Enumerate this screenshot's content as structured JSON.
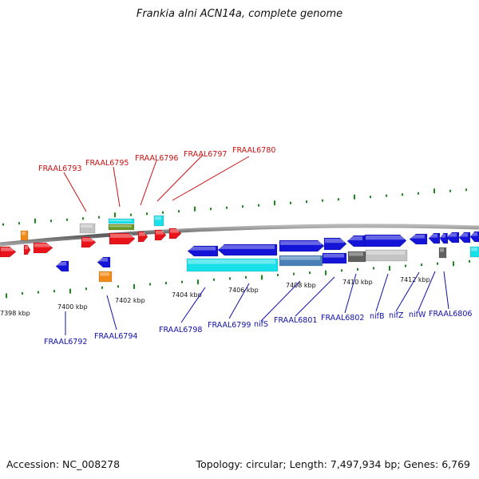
{
  "title": "Frankia alni ACN14a, complete genome",
  "footer": {
    "accession": "Accession: NC_008278",
    "stats": "Topology: circular; Length: 7,497,934 bp; Genes: 6,769"
  },
  "colors": {
    "red": "#e8141a",
    "blue": "#1414d8",
    "cyan": "#18e0e8",
    "orange": "#f08a14",
    "grey": "#c4c4c4",
    "steel": "#4a80b8",
    "darkgrey": "#606060",
    "olive": "#6a9a2a",
    "tick": "#1a8a1a",
    "backbone": "#6e6e6e",
    "upper_label": "#cc1111",
    "lower_label": "#1010aa"
  },
  "scale": {
    "unit": "kbp",
    "ticks": [
      {
        "label": "7398 kbp"
      },
      {
        "label": "7400 kbp"
      },
      {
        "label": "7402 kbp"
      },
      {
        "label": "7404 kbp"
      },
      {
        "label": "7406 kbp"
      },
      {
        "label": "7408 kbp"
      },
      {
        "label": "7410 kbp"
      },
      {
        "label": "7412 kbp"
      }
    ]
  },
  "upper_labels": [
    "FRAAL6793",
    "FRAAL6795",
    "FRAAL6796",
    "FRAAL6797",
    "FRAAL6780"
  ],
  "lower_labels": [
    "FRAAL6792",
    "FRAAL6794",
    "FRAAL6798",
    "FRAAL6799",
    "nifS",
    "FRAAL6801",
    "FRAAL6802",
    "nifB",
    "nifZ",
    "nifW",
    "FRAAL6806"
  ]
}
